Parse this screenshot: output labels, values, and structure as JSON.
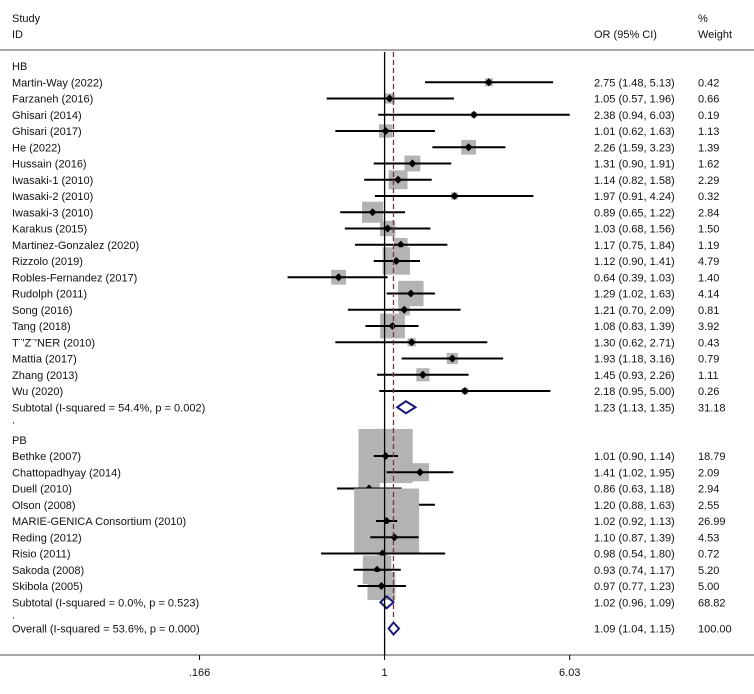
{
  "chart_data": {
    "type": "forest",
    "title": "",
    "headers": {
      "study_line1": "Study",
      "study_line2": "ID",
      "or": "OR (95% CI)",
      "weight_line1": "%",
      "weight_line2": "Weight"
    },
    "x_scale": "log",
    "x_ticks": [
      {
        "value": 0.166,
        "label": ".166"
      },
      {
        "value": 1,
        "label": "1"
      },
      {
        "value": 6.03,
        "label": "6.03"
      }
    ],
    "x_range": [
      0.14,
      7.2
    ],
    "reference_line": 1,
    "overall_line": 1.09,
    "groups": [
      {
        "label": "HB",
        "studies": [
          {
            "name": "Martin-Way (2022)",
            "or": 2.75,
            "lo": 1.48,
            "hi": 5.13,
            "ci_text": "2.75 (1.48, 5.13)",
            "weight": 0.42,
            "weight_text": "0.42"
          },
          {
            "name": "Farzaneh (2016)",
            "or": 1.05,
            "lo": 0.57,
            "hi": 1.96,
            "ci_text": "1.05 (0.57, 1.96)",
            "weight": 0.66,
            "weight_text": "0.66"
          },
          {
            "name": "Ghisari (2014)",
            "or": 2.38,
            "lo": 0.94,
            "hi": 6.03,
            "ci_text": "2.38 (0.94, 6.03)",
            "weight": 0.19,
            "weight_text": "0.19"
          },
          {
            "name": "Ghisari (2017)",
            "or": 1.01,
            "lo": 0.62,
            "hi": 1.63,
            "ci_text": "1.01 (0.62, 1.63)",
            "weight": 1.13,
            "weight_text": "1.13"
          },
          {
            "name": "He (2022)",
            "or": 2.26,
            "lo": 1.59,
            "hi": 3.23,
            "ci_text": "2.26 (1.59, 3.23)",
            "weight": 1.39,
            "weight_text": "1.39"
          },
          {
            "name": "Hussain (2016)",
            "or": 1.31,
            "lo": 0.9,
            "hi": 1.91,
            "ci_text": "1.31 (0.90, 1.91)",
            "weight": 1.62,
            "weight_text": "1.62"
          },
          {
            "name": "Iwasaki-1 (2010)",
            "or": 1.14,
            "lo": 0.82,
            "hi": 1.58,
            "ci_text": "1.14 (0.82, 1.58)",
            "weight": 2.29,
            "weight_text": "2.29"
          },
          {
            "name": "Iwasaki-2 (2010)",
            "or": 1.97,
            "lo": 0.91,
            "hi": 4.24,
            "ci_text": "1.97 (0.91, 4.24)",
            "weight": 0.32,
            "weight_text": "0.32"
          },
          {
            "name": "Iwasaki-3 (2010)",
            "or": 0.89,
            "lo": 0.65,
            "hi": 1.22,
            "ci_text": "0.89 (0.65, 1.22)",
            "weight": 2.84,
            "weight_text": "2.84"
          },
          {
            "name": "Karakus (2015)",
            "or": 1.03,
            "lo": 0.68,
            "hi": 1.56,
            "ci_text": "1.03 (0.68, 1.56)",
            "weight": 1.5,
            "weight_text": "1.50"
          },
          {
            "name": "Martinez-Gonzalez (2020)",
            "or": 1.17,
            "lo": 0.75,
            "hi": 1.84,
            "ci_text": "1.17 (0.75, 1.84)",
            "weight": 1.19,
            "weight_text": "1.19"
          },
          {
            "name": "Rizzolo (2019)",
            "or": 1.12,
            "lo": 0.9,
            "hi": 1.41,
            "ci_text": "1.12 (0.90, 1.41)",
            "weight": 4.79,
            "weight_text": "4.79"
          },
          {
            "name": "Robles-Fernandez (2017)",
            "or": 0.64,
            "lo": 0.39,
            "hi": 1.03,
            "ci_text": "0.64 (0.39, 1.03)",
            "weight": 1.4,
            "weight_text": "1.40"
          },
          {
            "name": "Rudolph (2011)",
            "or": 1.29,
            "lo": 1.02,
            "hi": 1.63,
            "ci_text": "1.29 (1.02, 1.63)",
            "weight": 4.14,
            "weight_text": "4.14"
          },
          {
            "name": "Song (2016)",
            "or": 1.21,
            "lo": 0.7,
            "hi": 2.09,
            "ci_text": "1.21 (0.70, 2.09)",
            "weight": 0.81,
            "weight_text": "0.81"
          },
          {
            "name": "Tang (2018)",
            "or": 1.08,
            "lo": 0.83,
            "hi": 1.39,
            "ci_text": "1.08 (0.83, 1.39)",
            "weight": 3.92,
            "weight_text": "3.92"
          },
          {
            "name": "T¨'Z¨'NER (2010)",
            "or": 1.3,
            "lo": 0.62,
            "hi": 2.71,
            "ci_text": "1.30 (0.62, 2.71)",
            "weight": 0.43,
            "weight_text": "0.43"
          },
          {
            "name": "Mattia (2017)",
            "or": 1.93,
            "lo": 1.18,
            "hi": 3.16,
            "ci_text": "1.93 (1.18, 3.16)",
            "weight": 0.79,
            "weight_text": "0.79"
          },
          {
            "name": "Zhang (2013)",
            "or": 1.45,
            "lo": 0.93,
            "hi": 2.26,
            "ci_text": "1.45 (0.93, 2.26)",
            "weight": 1.11,
            "weight_text": "1.11"
          },
          {
            "name": "Wu (2020)",
            "or": 2.18,
            "lo": 0.95,
            "hi": 5.0,
            "ci_text": "2.18 (0.95, 5.00)",
            "weight": 0.26,
            "weight_text": "0.26"
          }
        ],
        "subtotal": {
          "label": "Subtotal  (I-squared = 54.4%, p = 0.002)",
          "or": 1.23,
          "lo": 1.13,
          "hi": 1.35,
          "ci_text": "1.23 (1.13, 1.35)",
          "weight_text": "31.18"
        }
      },
      {
        "label": "PB",
        "studies": [
          {
            "name": "Bethke (2007)",
            "or": 1.01,
            "lo": 0.9,
            "hi": 1.14,
            "ci_text": "1.01 (0.90, 1.14)",
            "weight": 18.79,
            "weight_text": "18.79"
          },
          {
            "name": "Chattopadhyay (2014)",
            "or": 1.41,
            "lo": 1.02,
            "hi": 1.95,
            "ci_text": "1.41 (1.02, 1.95)",
            "weight": 2.09,
            "weight_text": "2.09"
          },
          {
            "name": "Duell (2010)",
            "or": 0.86,
            "lo": 0.63,
            "hi": 1.18,
            "ci_text": "0.86 (0.63, 1.18)",
            "weight": 2.94,
            "weight_text": "2.94"
          },
          {
            "name": "Olson (2008)",
            "or": 1.2,
            "lo": 0.88,
            "hi": 1.63,
            "ci_text": "1.20 (0.88, 1.63)",
            "weight": 2.55,
            "weight_text": "2.55"
          },
          {
            "name": "MARIE-GENICA Consortium (2010)",
            "or": 1.02,
            "lo": 0.92,
            "hi": 1.13,
            "ci_text": "1.02 (0.92, 1.13)",
            "weight": 26.99,
            "weight_text": "26.99"
          },
          {
            "name": "Reding (2012)",
            "or": 1.1,
            "lo": 0.87,
            "hi": 1.39,
            "ci_text": "1.10 (0.87, 1.39)",
            "weight": 4.53,
            "weight_text": "4.53"
          },
          {
            "name": "Risio (2011)",
            "or": 0.98,
            "lo": 0.54,
            "hi": 1.8,
            "ci_text": "0.98 (0.54, 1.80)",
            "weight": 0.72,
            "weight_text": "0.72"
          },
          {
            "name": "Sakoda (2008)",
            "or": 0.93,
            "lo": 0.74,
            "hi": 1.17,
            "ci_text": "0.93 (0.74, 1.17)",
            "weight": 5.2,
            "weight_text": "5.20"
          },
          {
            "name": "Skibola (2005)",
            "or": 0.97,
            "lo": 0.77,
            "hi": 1.23,
            "ci_text": "0.97 (0.77, 1.23)",
            "weight": 5.0,
            "weight_text": "5.00"
          }
        ],
        "subtotal": {
          "label": "Subtotal  (I-squared = 0.0%, p = 0.523)",
          "or": 1.02,
          "lo": 0.96,
          "hi": 1.09,
          "ci_text": "1.02 (0.96, 1.09)",
          "weight_text": "68.82"
        }
      }
    ],
    "separator": ".",
    "overall": {
      "label": "Overall  (I-squared = 53.6%, p = 0.000)",
      "or": 1.09,
      "lo": 1.04,
      "hi": 1.15,
      "ci_text": "1.09 (1.04, 1.15)",
      "weight_text": "100.00"
    },
    "colors": {
      "box": "#b3b3b3",
      "diamond": "#1a1a7a",
      "overall_line": "#b02020",
      "text": "#111111"
    }
  }
}
